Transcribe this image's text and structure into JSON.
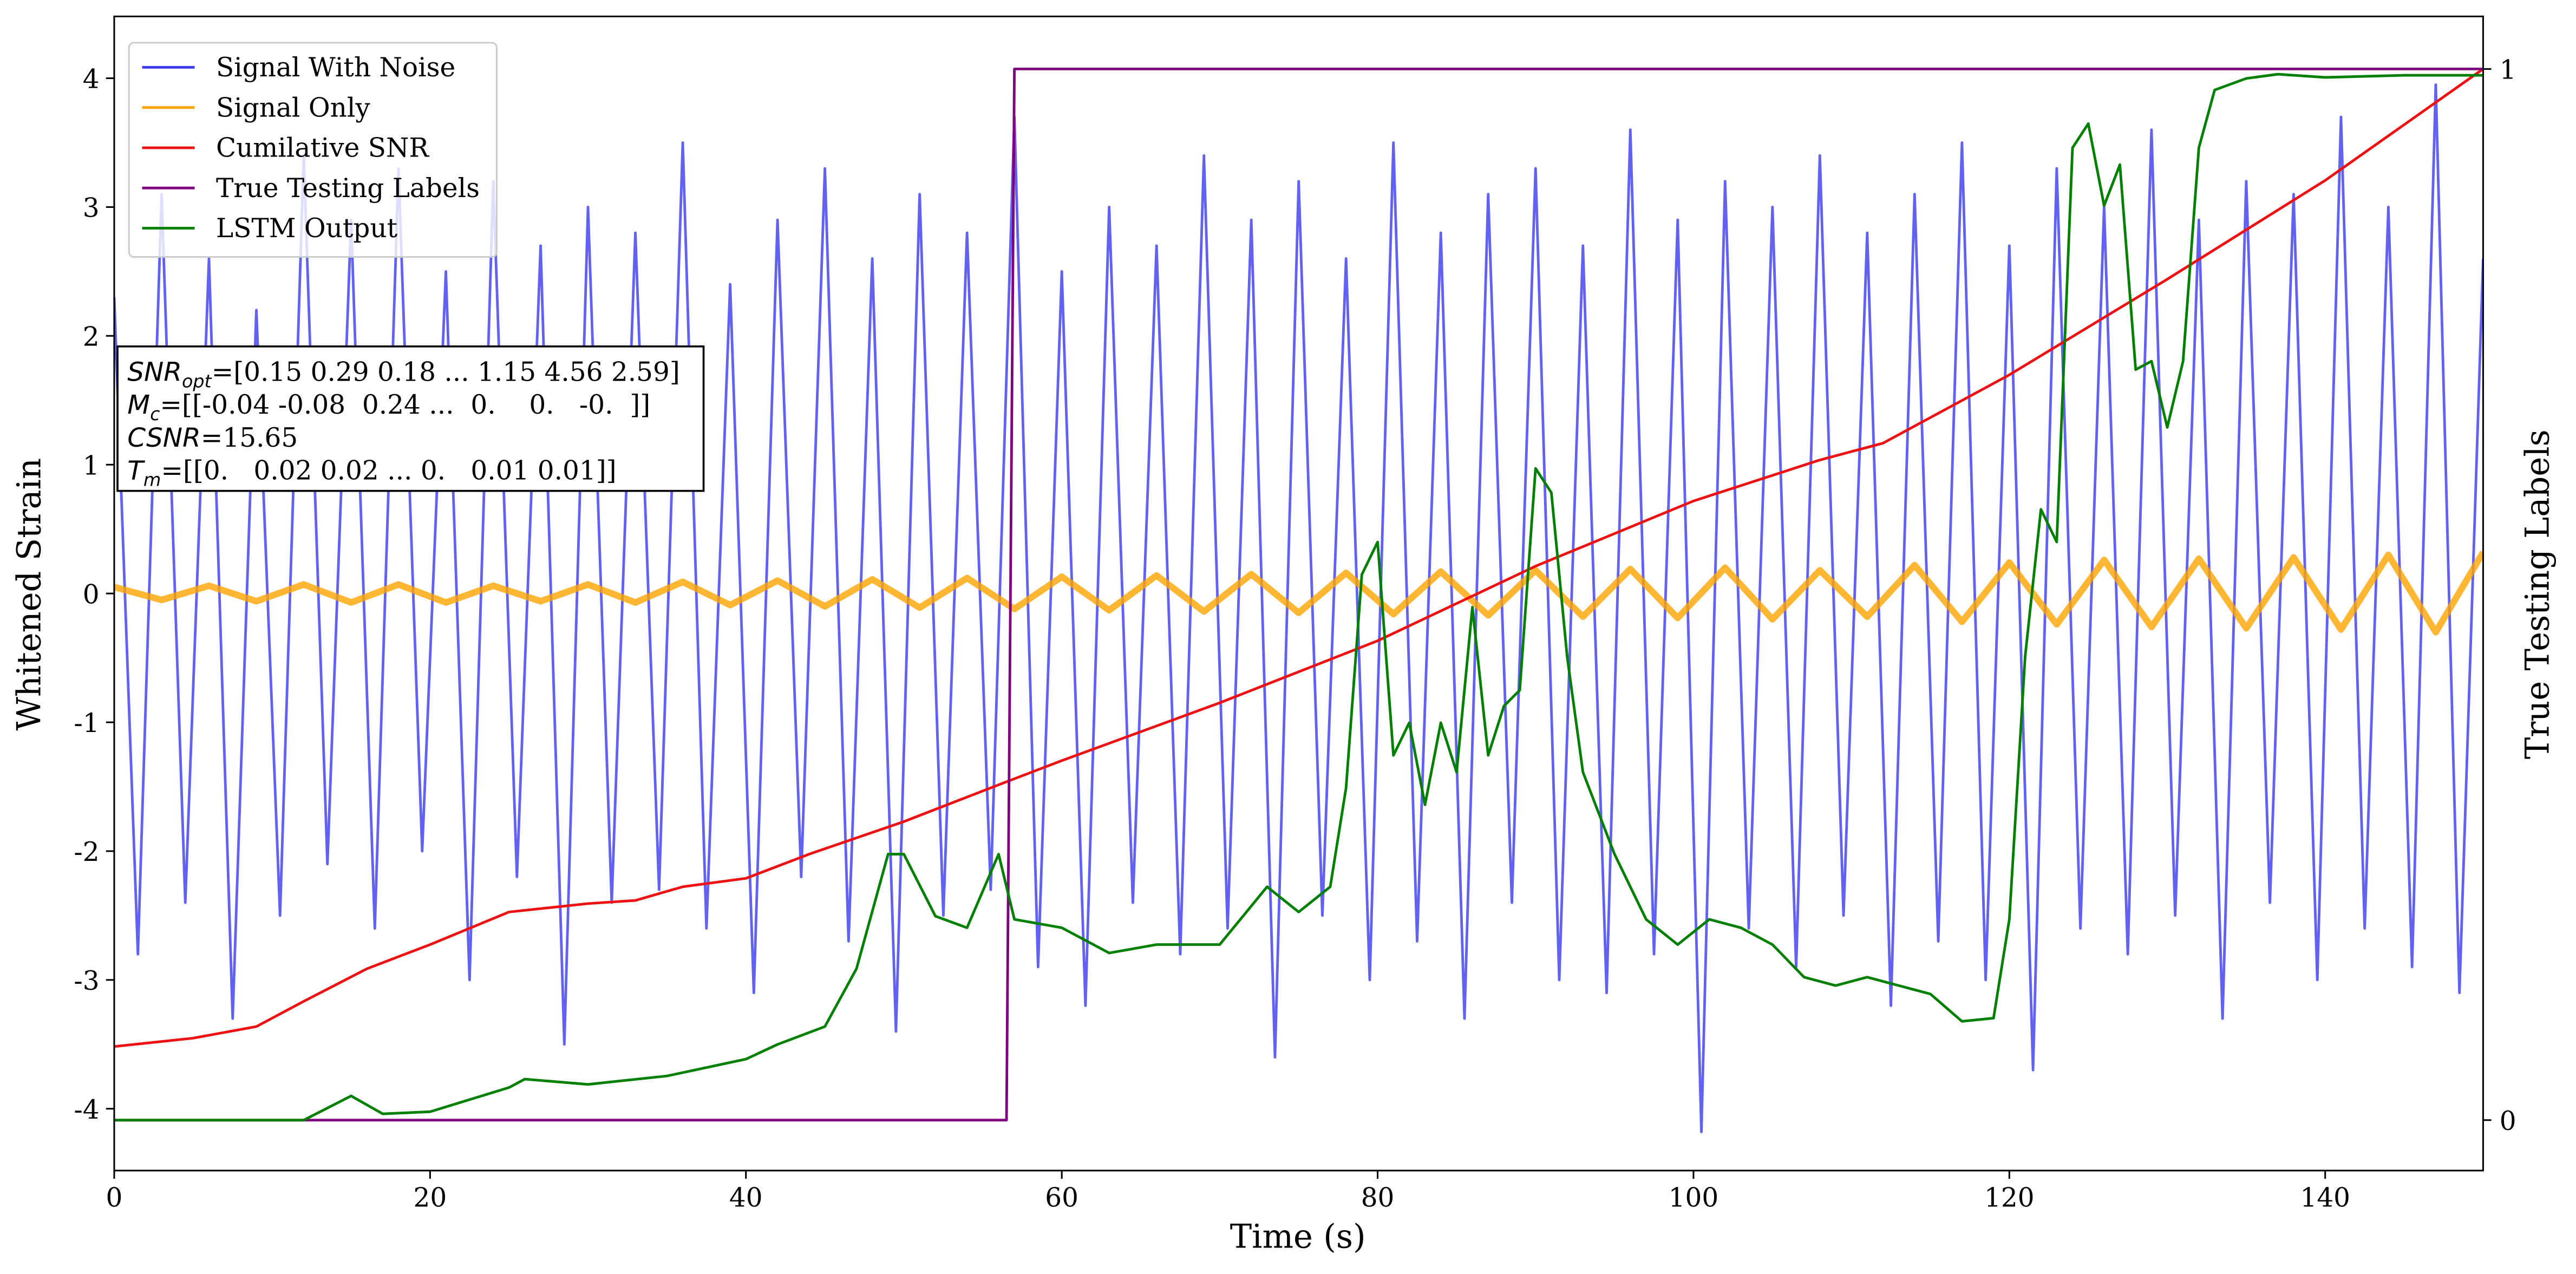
{
  "chart_data": {
    "type": "line",
    "xlabel": "Time (s)",
    "ylabel": "Whitened Strain",
    "y2label": "True Testing Labels",
    "xlim": [
      0,
      150
    ],
    "ylim": [
      -4.48,
      4.48
    ],
    "y2lim": [
      -0.048,
      1.05
    ],
    "xticks": [
      0,
      20,
      40,
      60,
      80,
      100,
      120,
      140
    ],
    "yticks": [
      -4,
      -3,
      -2,
      -1,
      0,
      1,
      2,
      3,
      4
    ],
    "y2ticks": [
      0,
      1
    ],
    "legend": "upper left",
    "series": [
      {
        "name": "Signal With Noise",
        "color": "#3a3af0",
        "axis": "y",
        "x": [
          0,
          1.5,
          3,
          4.5,
          6,
          7.5,
          9,
          10.5,
          12,
          13.5,
          15,
          16.5,
          18,
          19.5,
          21,
          22.5,
          24,
          25.5,
          27,
          28.5,
          30,
          31.5,
          33,
          34.5,
          36,
          37.5,
          39,
          40.5,
          42,
          43.5,
          45,
          46.5,
          48,
          49.5,
          51,
          52.5,
          54,
          55.5,
          57,
          58.5,
          60,
          61.5,
          63,
          64.5,
          66,
          67.5,
          69,
          70.5,
          72,
          73.5,
          75,
          76.5,
          78,
          79.5,
          81,
          82.5,
          84,
          85.5,
          87,
          88.5,
          90,
          91.5,
          93,
          94.5,
          96,
          97.5,
          99,
          100.5,
          102,
          103.5,
          105,
          106.5,
          108,
          109.5,
          111,
          112.5,
          114,
          115.5,
          117,
          118.5,
          120,
          121.5,
          123,
          124.5,
          126,
          127.5,
          129,
          130.5,
          132,
          133.5,
          135,
          136.5,
          138,
          139.5,
          141,
          142.5,
          144,
          145.5,
          147,
          148.5,
          150
        ],
        "values": [
          2.3,
          -2.8,
          3.1,
          -2.4,
          2.6,
          -3.3,
          2.2,
          -2.5,
          3.4,
          -2.1,
          2.9,
          -2.6,
          3.3,
          -2.0,
          2.5,
          -3.0,
          3.2,
          -2.2,
          2.7,
          -3.5,
          3.0,
          -2.4,
          2.8,
          -2.3,
          3.5,
          -2.6,
          2.4,
          -3.1,
          2.9,
          -2.2,
          3.3,
          -2.7,
          2.6,
          -3.4,
          3.1,
          -2.5,
          2.8,
          -2.3,
          3.7,
          -2.9,
          2.5,
          -3.2,
          3.0,
          -2.4,
          2.7,
          -2.8,
          3.4,
          -2.6,
          2.9,
          -3.6,
          3.2,
          -2.5,
          2.6,
          -3.0,
          3.5,
          -2.7,
          2.8,
          -3.3,
          3.1,
          -2.4,
          3.3,
          -3.0,
          2.7,
          -3.1,
          3.6,
          -2.8,
          2.9,
          -4.18,
          3.2,
          -2.6,
          3.0,
          -2.9,
          3.4,
          -2.5,
          2.8,
          -3.2,
          3.1,
          -2.7,
          3.5,
          -3.0,
          2.7,
          -3.7,
          3.3,
          -2.6,
          3.0,
          -2.8,
          3.6,
          -2.5,
          2.9,
          -3.3,
          3.2,
          -2.4,
          3.1,
          -3.0,
          3.7,
          -2.6,
          3.0,
          -2.9,
          3.95,
          -3.1,
          2.6
        ]
      },
      {
        "name": "Signal Only",
        "color": "orange",
        "axis": "y",
        "x": [
          0,
          3,
          6,
          9,
          12,
          15,
          18,
          21,
          24,
          27,
          30,
          33,
          36,
          39,
          42,
          45,
          48,
          51,
          54,
          57,
          60,
          63,
          66,
          69,
          72,
          75,
          78,
          81,
          84,
          87,
          90,
          93,
          96,
          99,
          102,
          105,
          108,
          111,
          114,
          117,
          120,
          123,
          126,
          129,
          132,
          135,
          138,
          141,
          144,
          147,
          150
        ],
        "values": [
          0.05,
          -0.05,
          0.06,
          -0.06,
          0.07,
          -0.07,
          0.07,
          -0.07,
          0.06,
          -0.06,
          0.07,
          -0.07,
          0.09,
          -0.09,
          0.1,
          -0.1,
          0.11,
          -0.11,
          0.12,
          -0.12,
          0.13,
          -0.13,
          0.14,
          -0.14,
          0.15,
          -0.15,
          0.16,
          -0.16,
          0.17,
          -0.17,
          0.18,
          -0.18,
          0.19,
          -0.19,
          0.2,
          -0.2,
          0.18,
          -0.18,
          0.22,
          -0.22,
          0.24,
          -0.24,
          0.26,
          -0.26,
          0.27,
          -0.27,
          0.28,
          -0.28,
          0.3,
          -0.3,
          0.32
        ]
      },
      {
        "name": "Cumilative SNR",
        "color": "#ee1111",
        "axis": "y2",
        "x": [
          0,
          5,
          9,
          12,
          16,
          20,
          25,
          30,
          33,
          36,
          40,
          44,
          50,
          56,
          60,
          70,
          80,
          90,
          100,
          108,
          112,
          120,
          130,
          140,
          150
        ],
        "values": [
          0.07,
          0.078,
          0.089,
          0.113,
          0.144,
          0.167,
          0.198,
          0.206,
          0.209,
          0.222,
          0.23,
          0.253,
          0.284,
          0.319,
          0.342,
          0.397,
          0.456,
          0.527,
          0.589,
          0.628,
          0.644,
          0.709,
          0.8,
          0.894,
          1.0
        ]
      },
      {
        "name": "True Testing Labels",
        "color": "purple",
        "axis": "y2",
        "x": [
          0,
          56.5,
          57,
          150
        ],
        "values": [
          0,
          0,
          1,
          1
        ]
      },
      {
        "name": "LSTM Output",
        "color": "green",
        "axis": "y2",
        "x": [
          0,
          12,
          15,
          17,
          20,
          25,
          26,
          30,
          35,
          40,
          42,
          45,
          47,
          49,
          50,
          52,
          54,
          56,
          57,
          60,
          63,
          66,
          70,
          73,
          75,
          77,
          78,
          79,
          80,
          81,
          82,
          83,
          84,
          85,
          86,
          87,
          88,
          89,
          90,
          91,
          92,
          93,
          95,
          97,
          99,
          101,
          103,
          105,
          107,
          109,
          111,
          113,
          115,
          117,
          119,
          120,
          121,
          122,
          123,
          124,
          125,
          126,
          127,
          128,
          129,
          130,
          131,
          132,
          133,
          135,
          137,
          140,
          145,
          150
        ],
        "values": [
          0,
          0,
          0.023,
          0.006,
          0.008,
          0.031,
          0.039,
          0.034,
          0.042,
          0.058,
          0.072,
          0.089,
          0.144,
          0.253,
          0.253,
          0.194,
          0.183,
          0.253,
          0.191,
          0.183,
          0.159,
          0.167,
          0.167,
          0.222,
          0.198,
          0.222,
          0.316,
          0.519,
          0.55,
          0.347,
          0.378,
          0.3,
          0.378,
          0.331,
          0.488,
          0.347,
          0.394,
          0.409,
          0.62,
          0.597,
          0.441,
          0.331,
          0.253,
          0.191,
          0.167,
          0.191,
          0.183,
          0.167,
          0.136,
          0.128,
          0.136,
          0.128,
          0.12,
          0.094,
          0.097,
          0.191,
          0.441,
          0.581,
          0.55,
          0.925,
          0.948,
          0.87,
          0.909,
          0.714,
          0.722,
          0.659,
          0.722,
          0.925,
          0.98,
          0.991,
          0.995,
          0.992,
          0.994,
          0.994
        ]
      }
    ],
    "annotations": [
      {
        "symbol": "SNR",
        "sub": "opt",
        "text": "=[0.15 0.29 0.18 ... 1.15 4.56 2.59]"
      },
      {
        "symbol": "M",
        "sub": "c",
        "text": "=[[-0.04 -0.08  0.24 ...  0.    0.   -0.  ]]"
      },
      {
        "symbol": "CSNR",
        "text": "=15.65"
      },
      {
        "symbol": "T",
        "sub": "m",
        "text": "=[[0.   0.02 0.02 ... 0.   0.01 0.01]]"
      }
    ]
  }
}
